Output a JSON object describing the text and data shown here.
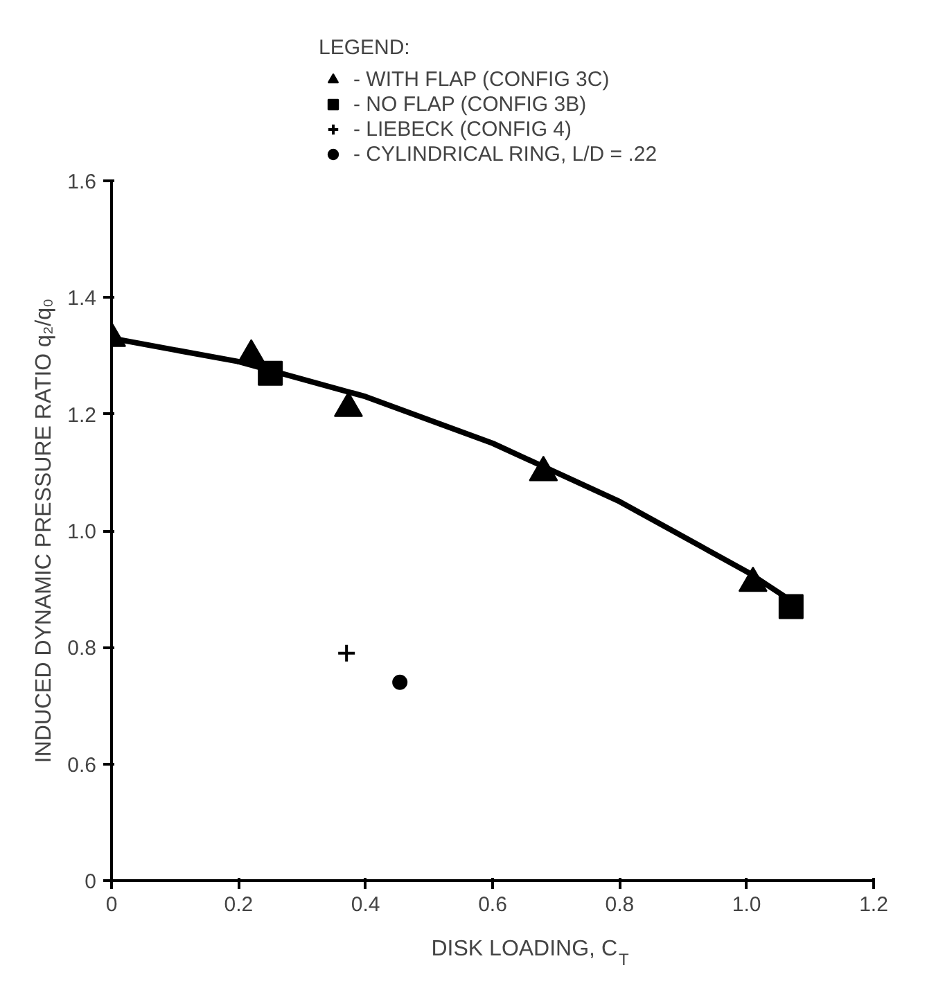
{
  "chart_data": {
    "type": "scatter",
    "xlabel": "DISK LOADING, C$_{T}$",
    "ylabel": "INDUCED DYNAMIC PRESSURE RATIO q₂/q₀",
    "legend_title": "LEGEND:",
    "legend": "top",
    "grid": false,
    "xlim": [
      0,
      1.2
    ],
    "xticks": [
      0,
      0.2,
      0.4,
      0.6,
      0.8,
      {
        "value": 1.0,
        "label": "1.0"
      },
      1.2
    ],
    "ylim": [
      0.4,
      1.6
    ],
    "yticks": [
      {
        "value": 0.4,
        "label": "0"
      },
      0.6,
      0.8,
      {
        "value": 1.0,
        "label": "1.0"
      },
      {
        "value": 1.2,
        "label": "1.2"
      },
      1.4,
      1.6
    ],
    "series": [
      {
        "name": "- WITH FLAP (CONFIG 3C)",
        "color": "#000000",
        "marker": "triangle",
        "x": [
          0,
          0.22,
          0.373,
          0.68,
          1.01
        ],
        "values": [
          1.33,
          1.3,
          1.21,
          1.1,
          0.91
        ]
      },
      {
        "name": "- NO FLAP (CONFIG 3B)",
        "color": "#000000",
        "marker": "square",
        "x": [
          0.25,
          1.07
        ],
        "values": [
          1.27,
          0.87
        ]
      },
      {
        "name": "- LIEBECK (CONFIG 4)",
        "color": "#000000",
        "marker": "cross",
        "x": [
          0.37
        ],
        "values": [
          0.79
        ]
      },
      {
        "name": "- CYLINDRICAL RING, L/D = .22",
        "color": "#000000",
        "marker": "circle",
        "x": [
          0.454
        ],
        "values": [
          0.74
        ]
      },
      {
        "type": "line",
        "color": "#000000",
        "line_style": "solid",
        "x": [
          0,
          0.2,
          0.4,
          0.6,
          0.8,
          1.0,
          1.07
        ],
        "values": [
          1.33,
          1.29,
          1.23,
          1.15,
          1.05,
          0.93,
          0.88
        ]
      }
    ]
  }
}
